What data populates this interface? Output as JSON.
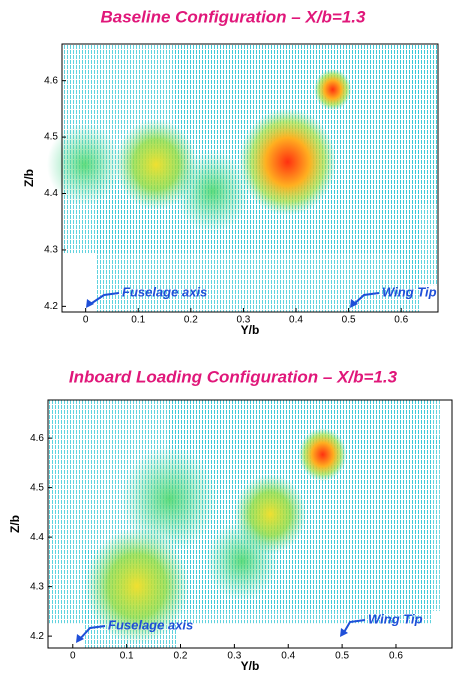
{
  "chart_data": [
    {
      "type": "vector-field",
      "title": "Baseline Configuration – X/b=1.3",
      "xlabel": "Y/b",
      "ylabel": "Z/b",
      "xlim": [
        -0.045,
        0.67
      ],
      "ylim": [
        4.19,
        4.665
      ],
      "xticks": [
        0,
        0.1,
        0.2,
        0.3,
        0.4,
        0.5,
        0.6
      ],
      "yticks": [
        4.2,
        4.3,
        4.4,
        4.5,
        4.6
      ],
      "annotations": [
        {
          "text": "Fuselage axis"
        },
        {
          "text": "Wing Tip"
        }
      ]
    },
    {
      "type": "vector-field",
      "title": "Inboard Loading Configuration – X/b=1.3",
      "xlabel": "Y/b",
      "ylabel": "Z/b",
      "xlim": [
        -0.046,
        0.704
      ],
      "ylim": [
        4.176,
        4.677
      ],
      "xticks": [
        0,
        0.1,
        0.2,
        0.3,
        0.4,
        0.5,
        0.6
      ],
      "yticks": [
        4.2,
        4.3,
        4.4,
        4.5,
        4.6
      ],
      "annotations": [
        {
          "text": "Fuselage axis"
        },
        {
          "text": "Wing Tip"
        }
      ]
    }
  ]
}
